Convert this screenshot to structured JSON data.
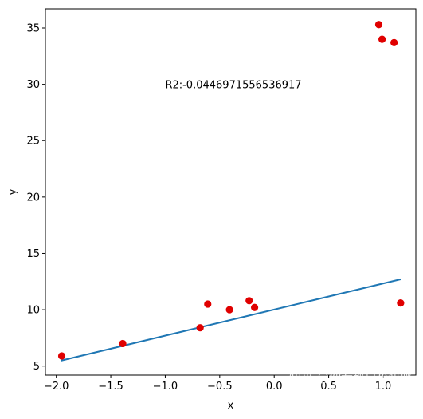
{
  "chart_data": {
    "type": "scatter",
    "xlabel": "x",
    "ylabel": "y",
    "xlim": [
      -2.1,
      1.3
    ],
    "ylim": [
      4.2,
      36.7
    ],
    "xticks": [
      -2.0,
      -1.5,
      -1.0,
      -0.5,
      0.0,
      0.5,
      1.0
    ],
    "xtick_labels": [
      "−2.0",
      "−1.5",
      "−1.0",
      "−0.5",
      "0.0",
      "0.5",
      "1.0"
    ],
    "yticks": [
      5,
      10,
      15,
      20,
      25,
      30,
      35
    ],
    "ytick_labels": [
      "5",
      "10",
      "15",
      "20",
      "25",
      "30",
      "35"
    ],
    "grid": false,
    "series": [
      {
        "kind": "scatter",
        "color": "#e00000",
        "points": [
          {
            "x": -1.95,
            "y": 5.9
          },
          {
            "x": -1.39,
            "y": 7.0
          },
          {
            "x": -0.68,
            "y": 8.4
          },
          {
            "x": -0.61,
            "y": 10.5
          },
          {
            "x": -0.41,
            "y": 10.0
          },
          {
            "x": -0.23,
            "y": 10.8
          },
          {
            "x": -0.18,
            "y": 10.2
          },
          {
            "x": 0.96,
            "y": 35.3
          },
          {
            "x": 0.99,
            "y": 34.0
          },
          {
            "x": 1.1,
            "y": 33.7
          },
          {
            "x": 1.16,
            "y": 10.6
          }
        ]
      },
      {
        "kind": "line",
        "color": "#1f77b4",
        "points": [
          {
            "x": -1.95,
            "y": 5.5
          },
          {
            "x": 1.16,
            "y": 12.7
          }
        ]
      }
    ],
    "annotation": {
      "text": "R2:-0.0446971556536917",
      "x": -1.0,
      "y": 30.0
    }
  },
  "watermark": "知乎 @你看那只小猫咪"
}
